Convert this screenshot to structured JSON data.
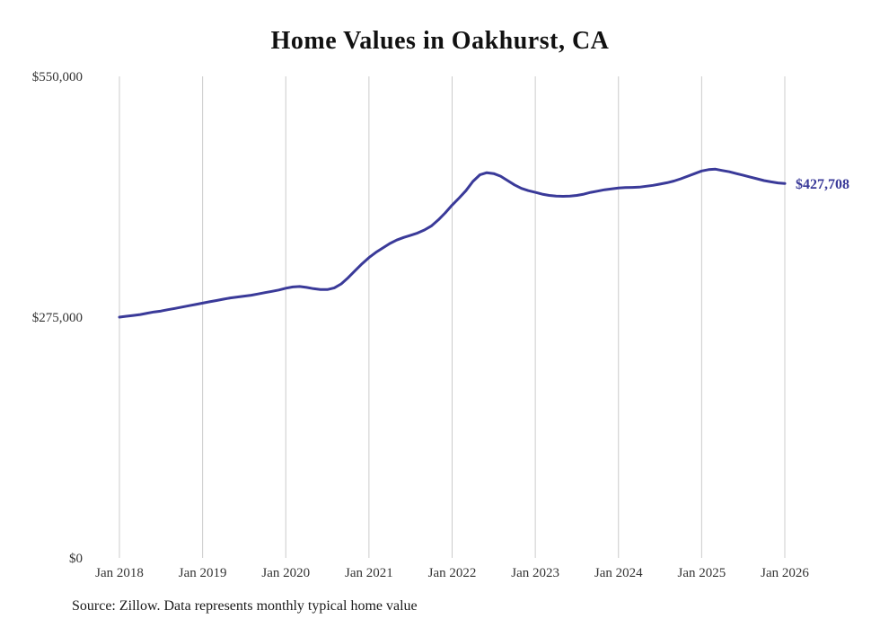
{
  "title": "Home Values in Oakhurst, CA",
  "source_note": "Source: Zillow. Data represents monthly typical home value",
  "chart_data": {
    "type": "line",
    "series_name": "Monthly typical home value",
    "x_start": "Jan 2018",
    "x_frequency": "monthly",
    "x_tick_labels": [
      "Jan 2018",
      "Jan 2019",
      "Jan 2020",
      "Jan 2021",
      "Jan 2022",
      "Jan 2023",
      "Jan 2024",
      "Jan 2025",
      "Jan 2026"
    ],
    "y_ticks": [
      {
        "label": "$550,000",
        "value": 550000
      },
      {
        "label": "$275,000",
        "value": 275000
      },
      {
        "label": "$0",
        "value": 0
      }
    ],
    "ylim": [
      0,
      550000
    ],
    "gridlines": "vertical-only",
    "legend": "none",
    "line_color": "#3a3a99",
    "grid_color": "#cccccc",
    "label_color": "#333333",
    "end_label": "$427,708",
    "end_value": 427708,
    "values": [
      275000,
      276000,
      277000,
      278000,
      279500,
      281000,
      282000,
      283500,
      285000,
      286500,
      288000,
      289500,
      291000,
      292500,
      294000,
      295500,
      297000,
      298000,
      299000,
      300000,
      301500,
      303000,
      304500,
      306000,
      308000,
      309500,
      310000,
      309000,
      307500,
      306500,
      306500,
      308500,
      313000,
      320000,
      328000,
      336000,
      343000,
      349000,
      354000,
      359000,
      363000,
      366000,
      368500,
      371000,
      374500,
      379000,
      386000,
      394000,
      403000,
      411000,
      419500,
      430000,
      437500,
      440000,
      439000,
      436000,
      431000,
      426000,
      422000,
      419500,
      417500,
      415500,
      414000,
      413200,
      413000,
      413200,
      414000,
      415500,
      417500,
      419000,
      420500,
      421500,
      422500,
      423000,
      423200,
      423500,
      424500,
      425500,
      427000,
      428500,
      430500,
      433000,
      436000,
      439000,
      442000,
      443500,
      444000,
      442500,
      441000,
      439000,
      437000,
      435000,
      433000,
      431000,
      429500,
      428300,
      427708
    ]
  }
}
